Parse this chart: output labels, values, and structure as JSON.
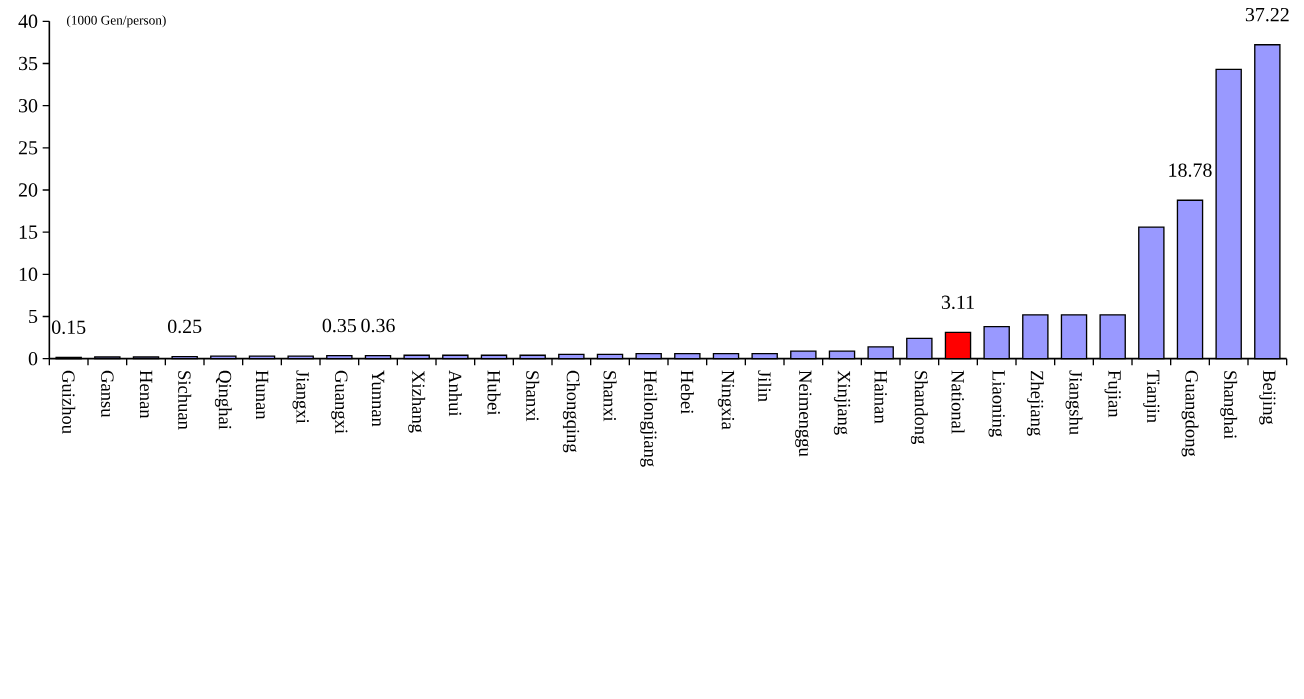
{
  "chart_data": {
    "type": "bar",
    "ylabel": "(1000 Gen/person)",
    "categories": [
      "Guizhou",
      "Gansu",
      "Henan",
      "Sichuan",
      "Qinghai",
      "Hunan",
      "Jiangxi",
      "Guangxi",
      "Yunnan",
      "Xizhang",
      "Anhui",
      "Hubei",
      "Shanxi",
      "Chongqing",
      "Shanxi",
      "Heilongjiang",
      "Hebei",
      "Ningxia",
      "Jilin",
      "Neimenggu",
      "Xinjiang",
      "Hainan",
      "Shandong",
      "National",
      "Liaoning",
      "Zhejiang",
      "Jiangshu",
      "Fujian",
      "Tianjin",
      "Guangdong",
      "Shanghai",
      "Beijing"
    ],
    "values": [
      0.15,
      0.2,
      0.2,
      0.25,
      0.3,
      0.3,
      0.3,
      0.35,
      0.36,
      0.4,
      0.4,
      0.4,
      0.4,
      0.5,
      0.5,
      0.6,
      0.6,
      0.6,
      0.6,
      0.9,
      0.9,
      1.4,
      2.4,
      3.11,
      3.8,
      5.2,
      5.2,
      5.2,
      15.6,
      18.78,
      34.3,
      37.22
    ],
    "colors": [
      "#9999ff",
      "#9999ff",
      "#9999ff",
      "#9999ff",
      "#9999ff",
      "#9999ff",
      "#9999ff",
      "#9999ff",
      "#9999ff",
      "#9999ff",
      "#9999ff",
      "#9999ff",
      "#9999ff",
      "#9999ff",
      "#9999ff",
      "#9999ff",
      "#9999ff",
      "#9999ff",
      "#9999ff",
      "#9999ff",
      "#9999ff",
      "#9999ff",
      "#9999ff",
      "#ff0000",
      "#9999ff",
      "#9999ff",
      "#9999ff",
      "#9999ff",
      "#9999ff",
      "#9999ff",
      "#9999ff",
      "#9999ff"
    ],
    "value_labels": [
      "0.15",
      null,
      null,
      "0.25",
      null,
      null,
      null,
      "0.35",
      "0.36",
      null,
      null,
      null,
      null,
      null,
      null,
      null,
      null,
      null,
      null,
      null,
      null,
      null,
      null,
      "3.11",
      null,
      null,
      null,
      null,
      null,
      "18.78",
      null,
      "37.22"
    ],
    "ylim": [
      0,
      40
    ],
    "yticks": [
      0,
      5,
      10,
      15,
      20,
      25,
      30,
      35,
      40
    ]
  }
}
